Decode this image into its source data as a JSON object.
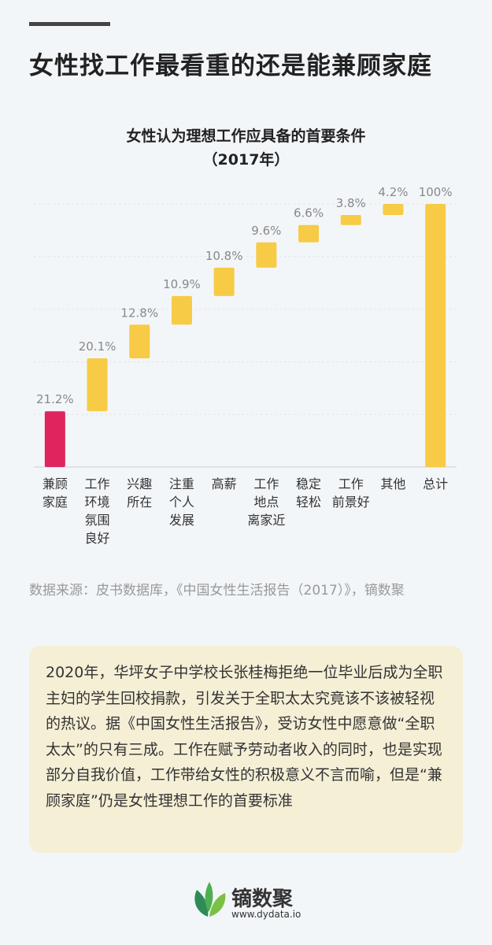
{
  "header": {
    "title": "女性找工作最看重的还是能兼顾家庭"
  },
  "chart_data": {
    "type": "waterfall",
    "title": "女性认为理想工作应具备的首要条件",
    "subtitle": "（2017年）",
    "categories": [
      "兼顾\n家庭",
      "工作\n环境\n氛围\n良好",
      "兴趣\n所在",
      "注重\n个人\n发展",
      "高薪",
      "工作\n地点\n离家近",
      "稳定\n轻松",
      "工作\n前景好",
      "其他",
      "总计"
    ],
    "values": [
      21.2,
      20.1,
      12.8,
      10.9,
      10.8,
      9.6,
      6.6,
      3.8,
      4.2,
      100
    ],
    "value_labels": [
      "21.2%",
      "20.1%",
      "12.8%",
      "10.9%",
      "10.8%",
      "9.6%",
      "6.6%",
      "3.8%",
      "4.2%",
      "100%"
    ],
    "colors": [
      "#e0245e",
      "#f7cb45",
      "#f7cb45",
      "#f7cb45",
      "#f7cb45",
      "#f7cb45",
      "#f7cb45",
      "#f7cb45",
      "#f7cb45",
      "#f7cb45"
    ],
    "totals": [
      9
    ],
    "ylim": [
      0,
      100
    ],
    "yticks": [
      0,
      20,
      40,
      60,
      80,
      100
    ],
    "grid": true
  },
  "source": "数据来源：皮书数据库，《中国女性生活报告（2017）》，镝数聚",
  "note": "2020年，华坪女子中学校长张桂梅拒绝一位毕业后成为全职主妇的学生回校捐款，引发关于全职太太究竟该不该被轻视的热议。据《中国女性生活报告》，受访女性中愿意做“全职太太”的只有三成。工作在赋予劳动者收入的同时，也是实现部分自我价值，工作带给女性的积极意义不言而喻，但是“兼顾家庭”仍是女性理想工作的首要标准",
  "footer": {
    "brand": "镝数聚",
    "url": "www.dydata.io"
  }
}
